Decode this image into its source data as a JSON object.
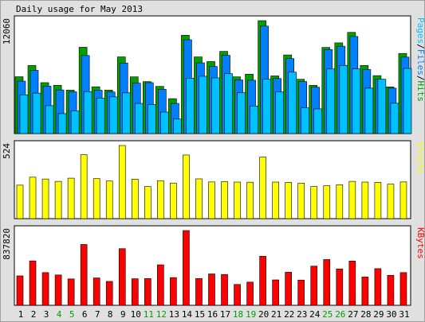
{
  "title": "Daily usage for May 2013",
  "chart_data": {
    "type": "bar",
    "title": "Daily usage for May 2013",
    "categories": [
      "1",
      "2",
      "3",
      "4",
      "5",
      "6",
      "7",
      "8",
      "9",
      "10",
      "11",
      "12",
      "13",
      "14",
      "15",
      "16",
      "17",
      "18",
      "19",
      "20",
      "21",
      "22",
      "23",
      "24",
      "25",
      "26",
      "27",
      "28",
      "29",
      "30",
      "31"
    ],
    "weekend_days": [
      "4",
      "5",
      "11",
      "12",
      "18",
      "19",
      "25",
      "26"
    ],
    "panels": [
      {
        "name": "hits",
        "y_label": "12060",
        "right_labels": [
          "Pages",
          "Files",
          "Hits"
        ],
        "ylim": [
          0,
          12060
        ],
        "series": [
          {
            "name": "Hits",
            "color": "#00a000",
            "values": [
              6070,
              7270,
              5440,
              5160,
              4640,
              9220,
              5000,
              4640,
              8190,
              6060,
              5550,
              5040,
              3730,
              10500,
              8190,
              7690,
              8780,
              6060,
              6340,
              12060,
              6160,
              8400,
              5800,
              5150,
              9200,
              9690,
              10810,
              7280,
              6190,
              4990,
              8560
            ]
          },
          {
            "name": "Files",
            "color": "#0080ff",
            "values": [
              5600,
              6750,
              5060,
              4660,
              4460,
              8340,
              4630,
              4440,
              7530,
              5380,
              5440,
              4720,
              3220,
              10020,
              7550,
              7170,
              8360,
              5730,
              5700,
              11480,
              5880,
              8010,
              5560,
              4950,
              8970,
              9330,
              10370,
              6840,
              5800,
              4850,
              8170
            ]
          },
          {
            "name": "Pages",
            "color": "#00c0ff",
            "values": [
              4140,
              4320,
              2980,
              2130,
              2420,
              4480,
              3780,
              3920,
              4350,
              3220,
              3100,
              2300,
              1550,
              5910,
              6120,
              5950,
              6400,
              4370,
              2940,
              5800,
              4450,
              6560,
              2750,
              2640,
              6900,
              7280,
              6910,
              4850,
              5800,
              3240,
              6960
            ]
          }
        ]
      },
      {
        "name": "visits",
        "y_label": "524",
        "right_labels": [
          "Visits"
        ],
        "ylim": [
          0,
          524
        ],
        "series": [
          {
            "name": "Visits",
            "color": "#ffff00",
            "values": [
              240,
              297,
              284,
              267,
              290,
              458,
              287,
              270,
              524,
              283,
              230,
              272,
              255,
              456,
              285,
              263,
              265,
              262,
              261,
              441,
              262,
              260,
              254,
              230,
              236,
              243,
              267,
              262,
              260,
              247,
              263
            ]
          }
        ]
      },
      {
        "name": "kbytes",
        "y_label": "837820",
        "right_labels": [
          "KBytes"
        ],
        "ylim": [
          0,
          837820
        ],
        "series": [
          {
            "name": "KBytes",
            "color": "#ff0000",
            "values": [
              330000,
              498000,
              367000,
              340000,
              296000,
              682000,
              307000,
              268000,
              635000,
              298000,
              300000,
              454000,
              311000,
              837820,
              300000,
              352000,
              346000,
              234000,
              260000,
              550000,
              285000,
              371000,
              283000,
              439000,
              513000,
              408000,
              496000,
              317000,
              411000,
              336000,
              367000
            ]
          }
        ]
      }
    ]
  }
}
